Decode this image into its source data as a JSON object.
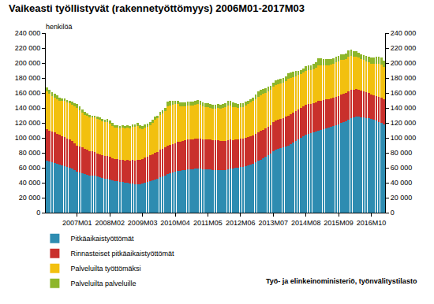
{
  "chart_data": {
    "type": "bar",
    "stacked": true,
    "grid": false,
    "legend": "bottom left",
    "title": "Vaikeasti työllistyvät (rakennetyöttömyys) 2006M01-2017M03",
    "ylabel": "henkilöä",
    "source": "Työ- ja elinkeinoministeriö, työnvälitystilasto",
    "categories": [
      null,
      null,
      null,
      null,
      null,
      null,
      null,
      null,
      null,
      null,
      null,
      null,
      "2007M01",
      null,
      null,
      null,
      null,
      null,
      null,
      null,
      null,
      null,
      null,
      null,
      null,
      "2008M02",
      null,
      null,
      null,
      null,
      null,
      null,
      null,
      null,
      null,
      null,
      null,
      null,
      "2009M03",
      null,
      null,
      null,
      null,
      null,
      null,
      null,
      null,
      null,
      null,
      null,
      null,
      "2010M04",
      null,
      null,
      null,
      null,
      null,
      null,
      null,
      null,
      null,
      null,
      null,
      null,
      "2011M05",
      null,
      null,
      null,
      null,
      null,
      null,
      null,
      null,
      null,
      null,
      null,
      null,
      "2012M06",
      null,
      null,
      null,
      null,
      null,
      null,
      null,
      null,
      null,
      null,
      null,
      null,
      "2013M07",
      null,
      null,
      null,
      null,
      null,
      null,
      null,
      null,
      null,
      null,
      null,
      null,
      "2014M08",
      null,
      null,
      null,
      null,
      null,
      null,
      null,
      null,
      null,
      null,
      null,
      null,
      "2015M09",
      null,
      null,
      null,
      null,
      null,
      null,
      null,
      null,
      null,
      null,
      null,
      null,
      "2016M10",
      null,
      null,
      null,
      null,
      null
    ],
    "ylim": [
      0,
      240000
    ],
    "yticks": [
      0,
      {
        "value": 20000,
        "label": "20 000"
      },
      {
        "value": 40000,
        "label": "40 000"
      },
      {
        "value": 60000,
        "label": "60 000"
      },
      {
        "value": 80000,
        "label": "80 000"
      },
      {
        "value": 100000,
        "label": "100 000"
      },
      {
        "value": 120000,
        "label": "120 000"
      },
      {
        "value": 140000,
        "label": "140 000"
      },
      {
        "value": 160000,
        "label": "160 000"
      },
      {
        "value": 180000,
        "label": "180 000"
      },
      {
        "value": 200000,
        "label": "200 000"
      },
      {
        "value": 220000,
        "label": "220 000"
      },
      {
        "value": 240000,
        "label": "240 000"
      }
    ],
    "y2lim": [
      0,
      240000
    ],
    "y2ticks": [
      0,
      {
        "value": 20000,
        "label": "20 000"
      },
      {
        "value": 40000,
        "label": "40 000"
      },
      {
        "value": 60000,
        "label": "60 000"
      },
      {
        "value": 80000,
        "label": "80 000"
      },
      {
        "value": 100000,
        "label": "100 000"
      },
      {
        "value": 120000,
        "label": "120 000"
      },
      {
        "value": 140000,
        "label": "140 000"
      },
      {
        "value": 160000,
        "label": "160 000"
      },
      {
        "value": 180000,
        "label": "180 000"
      },
      {
        "value": 200000,
        "label": "200 000"
      },
      {
        "value": 220000,
        "label": "220 000"
      },
      {
        "value": 240000,
        "label": "240 000"
      }
    ],
    "series": [
      {
        "name": "Pitkäaikaistyöttömät",
        "color": "#2e8cb1",
        "values": [
          70000,
          68000,
          67000,
          66000,
          65000,
          64000,
          63000,
          62000,
          61000,
          60000,
          59000,
          57000,
          55000,
          54000,
          53000,
          52000,
          51000,
          50000,
          50000,
          49000,
          48000,
          47000,
          46000,
          45000,
          45000,
          44000,
          43000,
          42000,
          42000,
          41000,
          41000,
          40000,
          40000,
          39000,
          39000,
          38000,
          38000,
          38000,
          39000,
          40000,
          41000,
          42000,
          43000,
          44000,
          45000,
          47000,
          48000,
          50000,
          52000,
          53000,
          54000,
          55000,
          56000,
          56000,
          57000,
          57000,
          58000,
          58000,
          58000,
          59000,
          59000,
          59000,
          58000,
          58000,
          58000,
          58000,
          57000,
          57000,
          57000,
          57000,
          57000,
          57000,
          58000,
          59000,
          59000,
          60000,
          60000,
          61000,
          61000,
          62000,
          63000,
          64000,
          65000,
          67000,
          69000,
          71000,
          73000,
          75000,
          77000,
          79000,
          82000,
          84000,
          85000,
          86000,
          87000,
          88000,
          90000,
          92000,
          94000,
          96000,
          98000,
          100000,
          102000,
          104000,
          105000,
          106000,
          107000,
          108000,
          110000,
          111000,
          112000,
          113000,
          114000,
          115000,
          116000,
          117000,
          118000,
          120000,
          121000,
          122000,
          124000,
          126000,
          127000,
          128000,
          128000,
          127000,
          127000,
          126000,
          126000,
          125000,
          124000,
          123000,
          121000,
          120000,
          118000
        ]
      },
      {
        "name": "Rinnasteiset pitkäaikaistyöttömät",
        "color": "#c9302c",
        "values": [
          42000,
          42000,
          41000,
          41000,
          40000,
          40000,
          39000,
          39000,
          38000,
          38000,
          37000,
          36000,
          35000,
          34000,
          34000,
          33000,
          33000,
          32000,
          32000,
          32000,
          31000,
          31000,
          31000,
          31000,
          31000,
          31000,
          30000,
          30000,
          30000,
          30000,
          30000,
          30000,
          31000,
          31000,
          32000,
          32000,
          33000,
          33000,
          33000,
          34000,
          34000,
          35000,
          35000,
          36000,
          36000,
          37000,
          37000,
          37000,
          38000,
          38000,
          38000,
          38000,
          39000,
          39000,
          39000,
          40000,
          40000,
          40000,
          40000,
          40000,
          40000,
          40000,
          40000,
          40000,
          40000,
          40000,
          40000,
          40000,
          40000,
          39000,
          39000,
          39000,
          39000,
          39000,
          38000,
          38000,
          38000,
          38000,
          38000,
          38000,
          38000,
          38000,
          38000,
          38000,
          38000,
          38000,
          38000,
          38000,
          38000,
          38000,
          39000,
          39000,
          39000,
          39000,
          39000,
          40000,
          40000,
          40000,
          40000,
          40000,
          40000,
          40000,
          40000,
          40000,
          40000,
          39000,
          39000,
          39000,
          39000,
          39000,
          39000,
          39000,
          38000,
          38000,
          38000,
          38000,
          38000,
          38000,
          38000,
          38000,
          38000,
          38000,
          37000,
          37000,
          36000,
          36000,
          35000,
          35000,
          34000,
          33000,
          33000,
          33000,
          34000,
          34000,
          34000
        ]
      },
      {
        "name": "Palveluilta työttömäksi",
        "color": "#f2c00f",
        "values": [
          50000,
          49000,
          48000,
          47000,
          47000,
          46000,
          47000,
          48000,
          48000,
          48000,
          48000,
          49000,
          50000,
          49000,
          47000,
          46000,
          45000,
          45000,
          45000,
          46000,
          46000,
          46000,
          45000,
          45000,
          45000,
          44000,
          43000,
          42000,
          42000,
          42000,
          43000,
          43000,
          43000,
          43000,
          44000,
          45000,
          45000,
          42000,
          40000,
          40000,
          40000,
          40000,
          42000,
          44000,
          45000,
          47000,
          48000,
          49000,
          52000,
          52000,
          52000,
          52000,
          50000,
          47000,
          46000,
          45000,
          45000,
          45000,
          45000,
          45000,
          46000,
          45000,
          44000,
          43000,
          43000,
          42000,
          42000,
          42000,
          43000,
          43000,
          44000,
          45000,
          46000,
          45000,
          44000,
          43000,
          42000,
          42000,
          42000,
          43000,
          44000,
          45000,
          46000,
          47000,
          48000,
          48000,
          48000,
          47000,
          47000,
          47000,
          47000,
          48000,
          48000,
          48000,
          48000,
          48000,
          49000,
          48000,
          47000,
          46000,
          46000,
          45000,
          45000,
          46000,
          46000,
          46000,
          46000,
          47000,
          48000,
          47000,
          46000,
          45000,
          45000,
          45000,
          45000,
          46000,
          46000,
          46000,
          45000,
          45000,
          46000,
          45000,
          44000,
          43000,
          43000,
          42000,
          42000,
          41000,
          41000,
          41000,
          42000,
          43000,
          44000,
          44000,
          43000
        ]
      },
      {
        "name": "Palveluilta palveluille",
        "color": "#8db62b",
        "values": [
          5000,
          5000,
          5000,
          5000,
          5000,
          4000,
          4000,
          4000,
          4000,
          4000,
          4000,
          4000,
          5000,
          5000,
          4000,
          4000,
          4000,
          4000,
          3000,
          3000,
          3000,
          3000,
          3000,
          3000,
          4000,
          4000,
          4000,
          3000,
          3000,
          3000,
          3000,
          3000,
          3000,
          3000,
          3000,
          3000,
          4000,
          4000,
          4000,
          4000,
          4000,
          4000,
          4000,
          4000,
          4000,
          4000,
          4000,
          4000,
          6000,
          6000,
          6000,
          5000,
          5000,
          5000,
          5000,
          5000,
          5000,
          5000,
          5000,
          5000,
          6000,
          6000,
          5000,
          5000,
          5000,
          5000,
          5000,
          5000,
          5000,
          5000,
          5000,
          5000,
          6000,
          6000,
          6000,
          5000,
          5000,
          5000,
          5000,
          5000,
          5000,
          5000,
          5000,
          6000,
          7000,
          7000,
          6000,
          6000,
          6000,
          6000,
          6000,
          6000,
          6000,
          6000,
          6000,
          6000,
          7000,
          7000,
          7000,
          7000,
          6000,
          6000,
          6000,
          6000,
          6000,
          6000,
          7000,
          7000,
          9000,
          9000,
          8000,
          8000,
          8000,
          7000,
          7000,
          7000,
          7000,
          8000,
          8000,
          8000,
          9000,
          9000,
          8000,
          8000,
          7000,
          7000,
          7000,
          7000,
          7000,
          8000,
          8000,
          9000,
          9000,
          9000,
          8000
        ]
      }
    ]
  }
}
